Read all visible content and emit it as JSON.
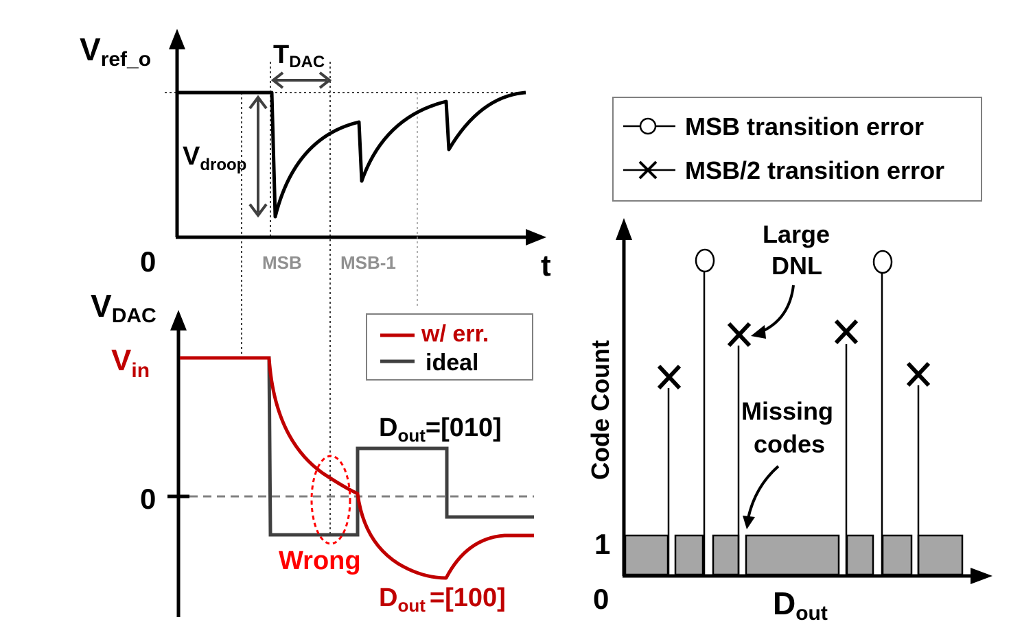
{
  "top_plot": {
    "y_label": "V",
    "y_label_sub": "ref_o",
    "x_label": "t",
    "origin_label": "0",
    "tdac_label": "T",
    "tdac_sub": "DAC",
    "vdroop_label": "V",
    "vdroop_sub": "droop",
    "marker_msb": "MSB",
    "marker_msb1": "MSB-1"
  },
  "bottom_plot": {
    "y_label": "V",
    "y_label_sub": "DAC",
    "vin_label": "V",
    "vin_sub": "in",
    "zero_label": "0",
    "legend": [
      {
        "label": "w/ err.",
        "color": "#c00000"
      },
      {
        "label": "ideal",
        "color": "#404040"
      }
    ],
    "dout_ideal": "=[010]",
    "dout_err": "=[100]",
    "dout_prefix": "D",
    "dout_sub": "out",
    "wrong_label": "Wrong"
  },
  "histogram": {
    "legend": [
      {
        "label": "MSB transition error",
        "marker": "circle"
      },
      {
        "label": "MSB/2 transition error",
        "marker": "cross"
      }
    ],
    "y_label": "Code Count",
    "x_label": "D",
    "x_label_sub": "out",
    "tick_one": "1",
    "origin_label": "0",
    "annotation_dnl_line1": "Large",
    "annotation_dnl_line2": "DNL",
    "annotation_missing_line1": "Missing",
    "annotation_missing_line2": "codes"
  },
  "colors": {
    "error": "#c00000",
    "ideal": "#404040",
    "bar_fill": "#a6a6a6",
    "marker_gray": "#909090"
  }
}
